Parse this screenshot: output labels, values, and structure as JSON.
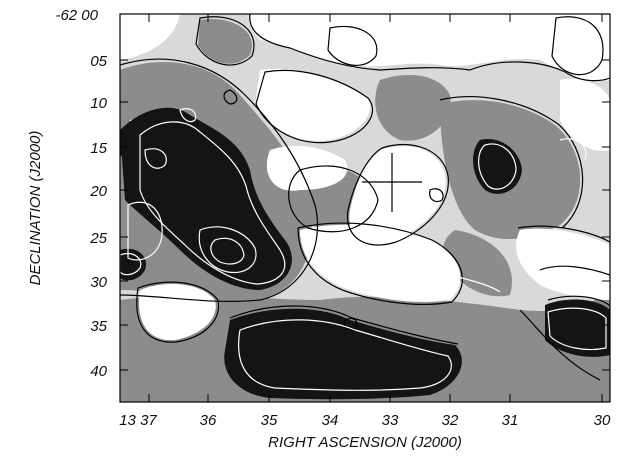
{
  "figure": {
    "x_axis_title": "RIGHT ASCENSION (J2000)",
    "y_axis_title": "DECLINATION (J2000)",
    "x_tick_labels": [
      "13 37",
      "36",
      "35",
      "34",
      "33",
      "32",
      "31",
      "30"
    ],
    "y_tick_labels": [
      "-62 00",
      "05",
      "10",
      "15",
      "20",
      "25",
      "30",
      "35",
      "40"
    ],
    "x_label_prefix": "13 37",
    "y_label_prefix": "-62 00",
    "colors": {
      "background": "#ffffff",
      "dark": "#141414",
      "mid": "#8c8c8c",
      "light": "#d4d4d4",
      "contour_black": "#000000",
      "contour_white": "#ffffff"
    }
  }
}
